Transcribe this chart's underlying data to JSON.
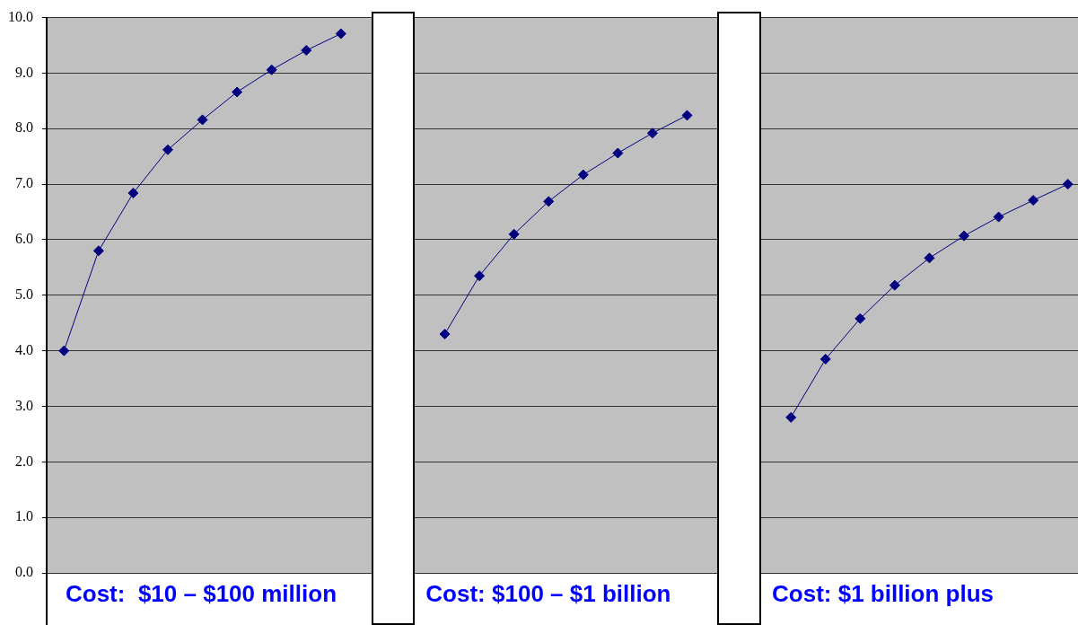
{
  "chart_data": {
    "type": "line",
    "categories": [
      null,
      null,
      null,
      null,
      null,
      null,
      null,
      null,
      null,
      null,
      null,
      null,
      null,
      null,
      null,
      null,
      null,
      null,
      null,
      null,
      null,
      null,
      null,
      null,
      null,
      null,
      null,
      null,
      null,
      null
    ],
    "series": [
      {
        "color": "#000080",
        "values": [
          4.0,
          5.8,
          6.84,
          7.62,
          8.16,
          8.66,
          9.06,
          9.41,
          9.71,
          null,
          null,
          4.3,
          5.35,
          6.1,
          6.69,
          7.17,
          7.56,
          7.92,
          8.24,
          null,
          null,
          2.8,
          3.85,
          4.58,
          5.18,
          5.67,
          6.07,
          6.41,
          6.71,
          7.0
        ]
      }
    ],
    "ylim": [
      0,
      10
    ],
    "yticks": [
      {
        "value": 0,
        "label": "0.0"
      },
      {
        "value": 1,
        "label": "1.0"
      },
      {
        "value": 2,
        "label": "2.0"
      },
      {
        "value": 3,
        "label": "3.0"
      },
      {
        "value": 4,
        "label": "4.0"
      },
      {
        "value": 5,
        "label": "5.0"
      },
      {
        "value": 6,
        "label": "6.0"
      },
      {
        "value": 7,
        "label": "7.0"
      },
      {
        "value": 8,
        "label": "8.0"
      },
      {
        "value": 9,
        "label": "9.0"
      },
      {
        "value": 10,
        "label": "10.0"
      }
    ],
    "grid": "y",
    "marker": "diamond",
    "line_style": "solid",
    "tick_labels": "y",
    "annotations": [
      "Cost:  $10 – $100 million",
      "Cost: $100 – $1 billion",
      "Cost: $1 billion plus"
    ]
  }
}
